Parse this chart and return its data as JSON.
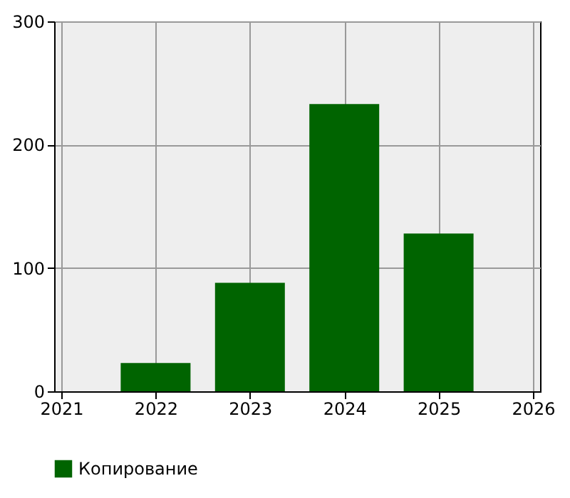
{
  "chart_data": {
    "type": "bar",
    "x": [
      2022,
      2023,
      2024,
      2025
    ],
    "series": [
      {
        "name": "Копирование",
        "color": "#006400",
        "values": [
          23,
          88,
          233,
          128
        ]
      }
    ],
    "xlim": [
      2021,
      2026
    ],
    "xticks": [
      2021,
      2022,
      2023,
      2024,
      2025,
      2026
    ],
    "ylim": [
      0,
      300
    ],
    "yticks": [
      0,
      100,
      200,
      300
    ],
    "grid": true,
    "legend": "bottom"
  }
}
